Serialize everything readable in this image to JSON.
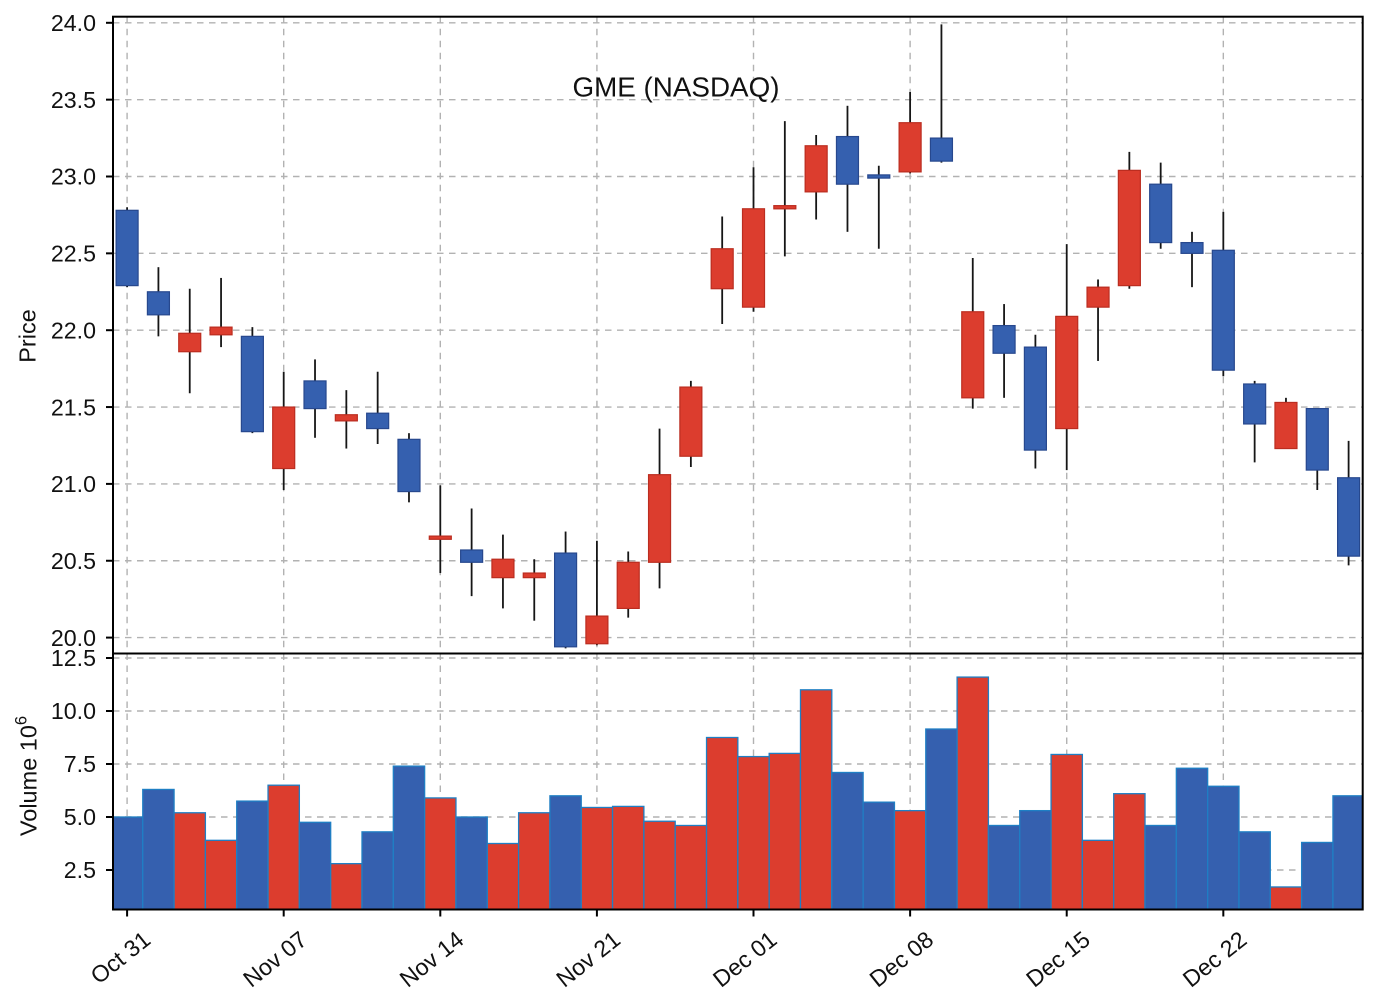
{
  "window": {
    "kind": "matplotlib-finance-chart",
    "background": "#ffffff"
  },
  "chart_data": {
    "type": "candlestick",
    "title": "GME (NASDAQ)",
    "panels": [
      {
        "name": "price",
        "ylabel": "Price",
        "ylim": [
          19.896,
          24.04
        ],
        "yticks": [
          "24.0",
          "23.5",
          "23.0",
          "22.5",
          "22.0",
          "21.5",
          "21.0",
          "20.5",
          "20.0"
        ],
        "grid": true
      },
      {
        "name": "volume",
        "ylabel": "Volume 10",
        "ylabel_superscript": "6",
        "ylim": [
          0.64,
          12.71
        ],
        "yticks": [
          "12.5",
          "10.0",
          "7.5",
          "5.0",
          "2.5"
        ],
        "grid": true
      }
    ],
    "x_axis": {
      "tick_indices": [
        0,
        5,
        10,
        15,
        20,
        25,
        30,
        35
      ],
      "tick_labels": [
        "Oct 31",
        "Nov 07",
        "Nov 14",
        "Nov 21",
        "Dec 01",
        "Dec 08",
        "Dec 15",
        "Dec 22"
      ],
      "label_rotation_deg": -38.5,
      "n_bars": 40
    },
    "legend": "none",
    "up_means": "close higher than open (red candles)",
    "down_means": "close lower than open (blue candles)",
    "series": [
      {
        "open": 22.78,
        "high": 22.8,
        "low": 22.28,
        "close": 22.29,
        "volume": 5.0,
        "dir": "down"
      },
      {
        "open": 22.25,
        "high": 22.41,
        "low": 21.96,
        "close": 22.1,
        "volume": 6.3,
        "dir": "down"
      },
      {
        "open": 21.86,
        "high": 22.27,
        "low": 21.59,
        "close": 21.98,
        "volume": 5.2,
        "dir": "up"
      },
      {
        "open": 21.97,
        "high": 22.34,
        "low": 21.89,
        "close": 22.02,
        "volume": 3.9,
        "dir": "up"
      },
      {
        "open": 21.96,
        "high": 22.02,
        "low": 21.33,
        "close": 21.34,
        "volume": 5.75,
        "dir": "down"
      },
      {
        "open": 21.1,
        "high": 21.73,
        "low": 20.96,
        "close": 21.5,
        "volume": 6.5,
        "dir": "up"
      },
      {
        "open": 21.67,
        "high": 21.81,
        "low": 21.3,
        "close": 21.49,
        "volume": 4.75,
        "dir": "down"
      },
      {
        "open": 21.41,
        "high": 21.61,
        "low": 21.23,
        "close": 21.45,
        "volume": 2.8,
        "dir": "up"
      },
      {
        "open": 21.46,
        "high": 21.73,
        "low": 21.26,
        "close": 21.36,
        "volume": 4.3,
        "dir": "down"
      },
      {
        "open": 21.29,
        "high": 21.33,
        "low": 20.88,
        "close": 20.95,
        "volume": 7.4,
        "dir": "down"
      },
      {
        "open": 20.64,
        "high": 20.99,
        "low": 20.42,
        "close": 20.66,
        "volume": 5.9,
        "dir": "up"
      },
      {
        "open": 20.57,
        "high": 20.84,
        "low": 20.27,
        "close": 20.49,
        "volume": 5.0,
        "dir": "down"
      },
      {
        "open": 20.39,
        "high": 20.67,
        "low": 20.19,
        "close": 20.51,
        "volume": 3.75,
        "dir": "up"
      },
      {
        "open": 20.39,
        "high": 20.51,
        "low": 20.11,
        "close": 20.42,
        "volume": 5.2,
        "dir": "up"
      },
      {
        "open": 20.55,
        "high": 20.69,
        "low": 19.93,
        "close": 19.94,
        "volume": 6.0,
        "dir": "down"
      },
      {
        "open": 19.96,
        "high": 20.63,
        "low": 19.95,
        "close": 20.14,
        "volume": 5.45,
        "dir": "up"
      },
      {
        "open": 20.19,
        "high": 20.56,
        "low": 20.13,
        "close": 20.49,
        "volume": 5.5,
        "dir": "up"
      },
      {
        "open": 20.49,
        "high": 21.36,
        "low": 20.32,
        "close": 21.06,
        "volume": 4.8,
        "dir": "up"
      },
      {
        "open": 21.18,
        "high": 21.67,
        "low": 21.11,
        "close": 21.63,
        "volume": 4.6,
        "dir": "up"
      },
      {
        "open": 22.27,
        "high": 22.74,
        "low": 22.04,
        "close": 22.53,
        "volume": 8.75,
        "dir": "up"
      },
      {
        "open": 22.15,
        "high": 23.06,
        "low": 22.12,
        "close": 22.79,
        "volume": 7.85,
        "dir": "up"
      },
      {
        "open": 22.79,
        "high": 23.36,
        "low": 22.48,
        "close": 22.81,
        "volume": 8.0,
        "dir": "up"
      },
      {
        "open": 22.9,
        "high": 23.27,
        "low": 22.72,
        "close": 23.2,
        "volume": 11.0,
        "dir": "up"
      },
      {
        "open": 23.26,
        "high": 23.46,
        "low": 22.64,
        "close": 22.95,
        "volume": 7.1,
        "dir": "down"
      },
      {
        "open": 23.0,
        "high": 23.07,
        "low": 22.53,
        "close": 23.0,
        "volume": 5.7,
        "dir": "down"
      },
      {
        "open": 23.03,
        "high": 23.55,
        "low": 23.02,
        "close": 23.35,
        "volume": 5.3,
        "dir": "up"
      },
      {
        "open": 23.25,
        "high": 23.99,
        "low": 23.09,
        "close": 23.1,
        "volume": 9.15,
        "dir": "down"
      },
      {
        "open": 21.56,
        "high": 22.47,
        "low": 21.49,
        "close": 22.12,
        "volume": 11.6,
        "dir": "up"
      },
      {
        "open": 22.03,
        "high": 22.17,
        "low": 21.56,
        "close": 21.85,
        "volume": 4.6,
        "dir": "down"
      },
      {
        "open": 21.89,
        "high": 21.97,
        "low": 21.1,
        "close": 21.22,
        "volume": 5.3,
        "dir": "down"
      },
      {
        "open": 21.36,
        "high": 22.56,
        "low": 21.09,
        "close": 22.09,
        "volume": 7.95,
        "dir": "up"
      },
      {
        "open": 22.15,
        "high": 22.33,
        "low": 21.8,
        "close": 22.28,
        "volume": 3.9,
        "dir": "up"
      },
      {
        "open": 22.29,
        "high": 23.16,
        "low": 22.27,
        "close": 23.04,
        "volume": 6.1,
        "dir": "up"
      },
      {
        "open": 22.95,
        "high": 23.09,
        "low": 22.53,
        "close": 22.57,
        "volume": 4.6,
        "dir": "down"
      },
      {
        "open": 22.57,
        "high": 22.64,
        "low": 22.28,
        "close": 22.5,
        "volume": 7.3,
        "dir": "down"
      },
      {
        "open": 22.52,
        "high": 22.77,
        "low": 21.7,
        "close": 21.74,
        "volume": 6.45,
        "dir": "down"
      },
      {
        "open": 21.65,
        "high": 21.67,
        "low": 21.14,
        "close": 21.39,
        "volume": 4.3,
        "dir": "down"
      },
      {
        "open": 21.23,
        "high": 21.56,
        "low": 21.23,
        "close": 21.53,
        "volume": 1.7,
        "dir": "up"
      },
      {
        "open": 21.49,
        "high": 21.49,
        "low": 20.96,
        "close": 21.09,
        "volume": 3.8,
        "dir": "down"
      },
      {
        "open": 21.04,
        "high": 21.28,
        "low": 20.47,
        "close": 20.53,
        "volume": 6.0,
        "dir": "down"
      }
    ]
  },
  "colors": {
    "up_fill": "#dc3d2e",
    "up_edge": "#bb2d20",
    "down_fill": "#3560af",
    "down_edge": "#27488e",
    "wick": "#161616",
    "volume_edge": "#1f7fc4",
    "grid": "#b2b2b2",
    "spine": "#000000",
    "text": "#111111"
  }
}
